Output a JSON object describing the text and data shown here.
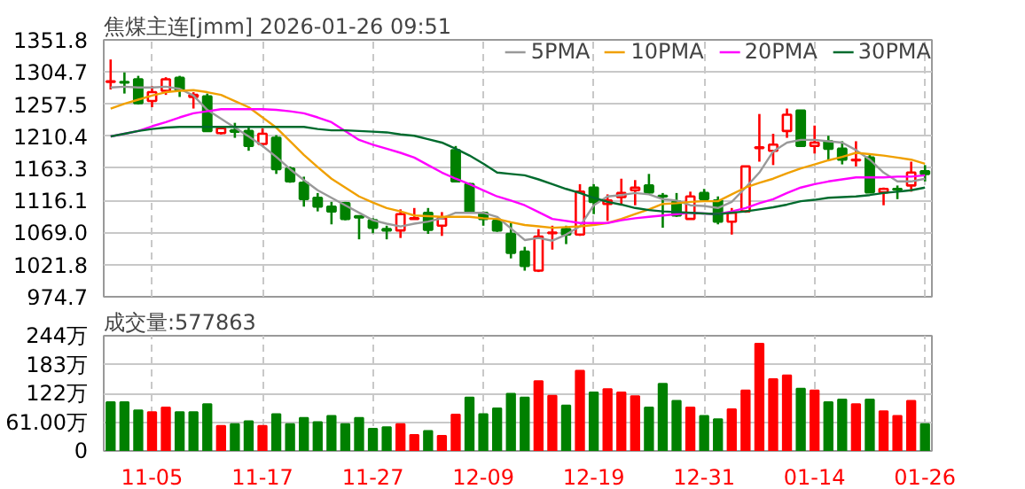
{
  "chart_data": [
    {
      "type": "candlestick",
      "title": "焦煤主连[jmm] 2026-01-26 09:51",
      "categories": [
        null,
        null,
        null,
        null,
        null,
        null,
        null,
        null,
        null,
        null,
        null,
        null,
        null,
        null,
        null,
        null,
        null,
        null,
        null,
        null,
        null,
        null,
        null,
        null,
        null,
        null,
        null,
        null,
        null,
        null,
        null,
        null,
        null,
        null,
        null,
        null,
        null,
        null,
        null,
        null,
        null,
        null,
        null,
        null,
        null,
        null,
        null,
        null,
        null,
        null,
        null,
        null,
        null,
        null,
        null,
        null,
        null,
        null,
        null,
        null
      ],
      "ohlc": [
        [
          1290,
          1323,
          1279,
          1291
        ],
        [
          1290,
          1304,
          1273,
          1289
        ],
        [
          1294,
          1299,
          1257,
          1259
        ],
        [
          1262,
          1284,
          1253,
          1275
        ],
        [
          1277,
          1297,
          1271,
          1294
        ],
        [
          1296,
          1299,
          1268,
          1278
        ],
        [
          1268,
          1275,
          1251,
          1271
        ],
        [
          1269,
          1273,
          1217,
          1218
        ],
        [
          1215,
          1225,
          1213,
          1222
        ],
        [
          1219,
          1230,
          1208,
          1217
        ],
        [
          1218,
          1223,
          1189,
          1196
        ],
        [
          1199,
          1222,
          1196,
          1214
        ],
        [
          1208,
          1212,
          1155,
          1162
        ],
        [
          1163,
          1166,
          1142,
          1144
        ],
        [
          1142,
          1151,
          1107,
          1118
        ],
        [
          1120,
          1127,
          1100,
          1107
        ],
        [
          1107,
          1114,
          1081,
          1100
        ],
        [
          1112,
          1114,
          1087,
          1089
        ],
        [
          1093,
          1094,
          1059,
          1091
        ],
        [
          1087,
          1090,
          1068,
          1076
        ],
        [
          1074,
          1079,
          1059,
          1072
        ],
        [
          1072,
          1103,
          1061,
          1096
        ],
        [
          1089,
          1105,
          1088,
          1090
        ],
        [
          1098,
          1105,
          1067,
          1073
        ],
        [
          1079,
          1099,
          1064,
          1090
        ],
        [
          1190,
          1196,
          1144,
          1144
        ],
        [
          1140,
          1142,
          1098,
          1100
        ],
        [
          1098,
          1100,
          1079,
          1089
        ],
        [
          1086,
          1089,
          1070,
          1072
        ],
        [
          1067,
          1083,
          1031,
          1039
        ],
        [
          1041,
          1048,
          1013,
          1020
        ],
        [
          1013,
          1074,
          1011,
          1063
        ],
        [
          1068,
          1079,
          1044,
          1069
        ],
        [
          1074,
          1079,
          1052,
          1066
        ],
        [
          1066,
          1140,
          1064,
          1129
        ],
        [
          1135,
          1140,
          1096,
          1114
        ],
        [
          1111,
          1125,
          1086,
          1116
        ],
        [
          1121,
          1148,
          1109,
          1127
        ],
        [
          1131,
          1146,
          1109,
          1135
        ],
        [
          1138,
          1155,
          1125,
          1128
        ],
        [
          1123,
          1127,
          1076,
          1122
        ],
        [
          1114,
          1127,
          1092,
          1094
        ],
        [
          1089,
          1129,
          1089,
          1122
        ],
        [
          1127,
          1133,
          1114,
          1118
        ],
        [
          1116,
          1122,
          1081,
          1085
        ],
        [
          1085,
          1105,
          1066,
          1098
        ],
        [
          1100,
          1166,
          1098,
          1166
        ],
        [
          1193,
          1243,
          1173,
          1194
        ],
        [
          1189,
          1214,
          1168,
          1198
        ],
        [
          1218,
          1251,
          1208,
          1242
        ],
        [
          1248,
          1248,
          1196,
          1196
        ],
        [
          1196,
          1226,
          1185,
          1201
        ],
        [
          1203,
          1211,
          1176,
          1192
        ],
        [
          1192,
          1203,
          1169,
          1176
        ],
        [
          1175,
          1203,
          1166,
          1176
        ],
        [
          1179,
          1183,
          1127,
          1128
        ],
        [
          1128,
          1135,
          1109,
          1133
        ],
        [
          1133,
          1138,
          1118,
          1132
        ],
        [
          1138,
          1173,
          1129,
          1157
        ],
        [
          1159,
          1168,
          1144,
          1155
        ]
      ],
      "series": [
        {
          "name": "5PMA",
          "type": "line",
          "color": "#999999",
          "values": [
            1282,
            1283,
            1282,
            1282,
            1283,
            1280,
            1270,
            1249,
            1236,
            1223,
            1210,
            1196,
            1180,
            1162,
            1146,
            1131,
            1120,
            1109,
            1098,
            1087,
            1082,
            1078,
            1082,
            1085,
            1090,
            1098,
            1098,
            1098,
            1092,
            1075,
            1058,
            1061,
            1057,
            1066,
            1078,
            1109,
            1122,
            1124,
            1127,
            1125,
            1118,
            1116,
            1109,
            1108,
            1105,
            1114,
            1135,
            1157,
            1188,
            1201,
            1205,
            1205,
            1203,
            1201,
            1190,
            1176,
            1157,
            1144,
            1144,
            1148
          ]
        },
        {
          "name": "10PMA",
          "type": "line",
          "color": "#f0a000",
          "values": [
            1251,
            1258,
            1264,
            1270,
            1275,
            1277,
            1278,
            1275,
            1271,
            1262,
            1253,
            1238,
            1223,
            1203,
            1183,
            1165,
            1148,
            1135,
            1122,
            1113,
            1105,
            1100,
            1094,
            1093,
            1092,
            1092,
            1092,
            1090,
            1089,
            1084,
            1080,
            1078,
            1076,
            1077,
            1078,
            1080,
            1083,
            1089,
            1096,
            1103,
            1111,
            1112,
            1114,
            1115,
            1115,
            1125,
            1135,
            1142,
            1148,
            1156,
            1163,
            1169,
            1175,
            1180,
            1186,
            1184,
            1182,
            1179,
            1176,
            1170
          ]
        },
        {
          "name": "20PMA",
          "type": "line",
          "color": "#ff00ff",
          "values": [
            1210,
            1214,
            1218,
            1225,
            1231,
            1238,
            1244,
            1247,
            1250,
            1250,
            1250,
            1250,
            1249,
            1247,
            1244,
            1238,
            1231,
            1218,
            1205,
            1198,
            1192,
            1186,
            1179,
            1168,
            1157,
            1148,
            1140,
            1131,
            1122,
            1116,
            1109,
            1099,
            1089,
            1086,
            1083,
            1083,
            1083,
            1087,
            1090,
            1092,
            1094,
            1096,
            1098,
            1097,
            1096,
            1100,
            1105,
            1112,
            1118,
            1127,
            1135,
            1140,
            1144,
            1147,
            1150,
            1150,
            1150,
            1151,
            1151,
            1153
          ]
        },
        {
          "name": "30PMA",
          "type": "line",
          "color": "#006b2e",
          "values": [
            1210,
            1214,
            1218,
            1221,
            1223,
            1224,
            1224,
            1224,
            1224,
            1224,
            1224,
            1224,
            1224,
            1224,
            1224,
            1221,
            1219,
            1219,
            1218,
            1217,
            1216,
            1213,
            1211,
            1206,
            1201,
            1192,
            1182,
            1170,
            1157,
            1155,
            1153,
            1147,
            1140,
            1133,
            1127,
            1120,
            1114,
            1110,
            1105,
            1102,
            1100,
            1099,
            1098,
            1097,
            1096,
            1098,
            1100,
            1103,
            1106,
            1110,
            1115,
            1117,
            1120,
            1121,
            1122,
            1124,
            1127,
            1129,
            1131,
            1135
          ]
        }
      ],
      "ylim": [
        974.7,
        1351.8
      ],
      "yticks": [
        974.7,
        {
          "value": 1021.8,
          "label": "1021.8"
        },
        {
          "value": 1069.0,
          "label": "1069.0"
        },
        1116.1,
        1163.3,
        1210.4,
        1257.5,
        1304.7,
        1351.8
      ],
      "grid": true,
      "legend": "top right",
      "tick_labels": "y"
    },
    {
      "type": "bar",
      "annotations": [
        "成交量:577863"
      ],
      "categories": [
        null,
        null,
        null,
        "11-05",
        null,
        null,
        null,
        null,
        null,
        null,
        null,
        "11-17",
        null,
        null,
        null,
        null,
        null,
        null,
        null,
        "11-27",
        null,
        null,
        null,
        null,
        null,
        null,
        null,
        "12-09",
        null,
        null,
        null,
        null,
        null,
        null,
        null,
        "12-19",
        null,
        null,
        null,
        null,
        null,
        null,
        null,
        "12-31",
        null,
        null,
        null,
        null,
        null,
        null,
        null,
        "01-14",
        null,
        null,
        null,
        null,
        null,
        null,
        null,
        "01-26"
      ],
      "values": [
        103,
        103,
        86,
        82,
        92,
        82,
        82,
        99,
        53,
        57,
        63,
        53,
        78,
        57,
        70,
        61,
        74,
        57,
        70,
        47,
        50,
        57,
        34,
        42,
        32,
        77,
        113,
        78,
        90,
        121,
        113,
        148,
        117,
        96,
        170,
        124,
        131,
        124,
        116,
        92,
        142,
        106,
        92,
        74,
        67,
        88,
        128,
        227,
        152,
        160,
        132,
        128,
        103,
        109,
        99,
        109,
        84,
        74,
        106,
        57
      ],
      "colors": [
        "#008000",
        "#008000",
        "#008000",
        "#ff0000",
        "#ff0000",
        "#008000",
        "#008000",
        "#008000",
        "#ff0000",
        "#008000",
        "#008000",
        "#ff0000",
        "#008000",
        "#008000",
        "#008000",
        "#008000",
        "#008000",
        "#008000",
        "#008000",
        "#008000",
        "#008000",
        "#ff0000",
        "#ff0000",
        "#008000",
        "#ff0000",
        "#ff0000",
        "#008000",
        "#008000",
        "#008000",
        "#008000",
        "#008000",
        "#ff0000",
        "#ff0000",
        "#008000",
        "#ff0000",
        "#008000",
        "#ff0000",
        "#ff0000",
        "#ff0000",
        "#008000",
        "#008000",
        "#008000",
        "#ff0000",
        "#008000",
        "#008000",
        "#ff0000",
        "#ff0000",
        "#ff0000",
        "#ff0000",
        "#ff0000",
        "#008000",
        "#ff0000",
        "#008000",
        "#008000",
        "#ff0000",
        "#008000",
        "#ff0000",
        "#ff0000",
        "#ff0000",
        "#008000"
      ],
      "ylim": [
        0,
        244
      ],
      "yticks": [
        0,
        {
          "value": 61,
          "label": "61.00万"
        },
        {
          "value": 122,
          "label": "122万"
        },
        {
          "value": 183,
          "label": "183万"
        },
        {
          "value": 244,
          "label": "244万"
        }
      ],
      "grid": true
    }
  ]
}
